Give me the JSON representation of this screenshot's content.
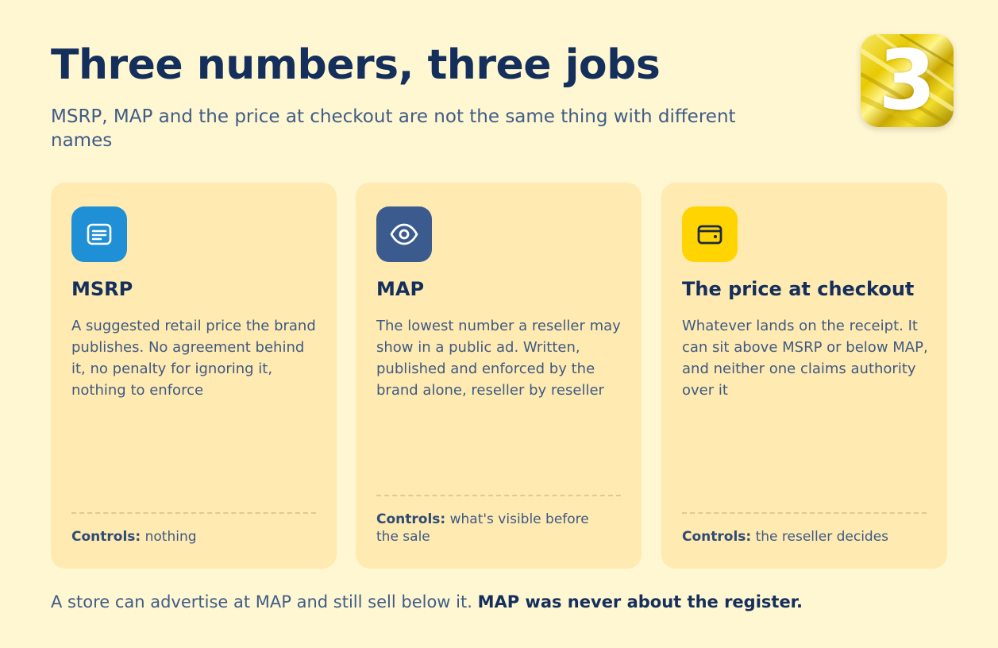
{
  "header": {
    "title": "Three numbers, three jobs",
    "subtitle": "MSRP, MAP and the price at checkout are not the same thing with different names",
    "badge_number": "3"
  },
  "cards": [
    {
      "icon": "receipt-icon",
      "icon_color": "#1f8fd6",
      "title": "MSRP",
      "body": "A suggested retail price the brand publishes. No agreement behind it, no penalty for ignoring it, nothing to enforce",
      "controls_label": "Controls:",
      "controls_value": "nothing"
    },
    {
      "icon": "eye-icon",
      "icon_color": "#3b5b8e",
      "title": "MAP",
      "body": "The lowest number a reseller may show in a public ad. Written, published and enforced by the brand alone, reseller by reseller",
      "controls_label": "Controls:",
      "controls_value": "what's visible before the sale"
    },
    {
      "icon": "wallet-icon",
      "icon_color": "#ffd400",
      "title": "The price at checkout",
      "body": "Whatever lands on the receipt. It can sit above MSRP or below MAP, and neither one claims authority over it",
      "controls_label": "Controls:",
      "controls_value": "the reseller decides"
    }
  ],
  "footer": {
    "text": "A store can advertise at MAP and still sell below it.",
    "emphasis": "MAP was never about the register."
  }
}
